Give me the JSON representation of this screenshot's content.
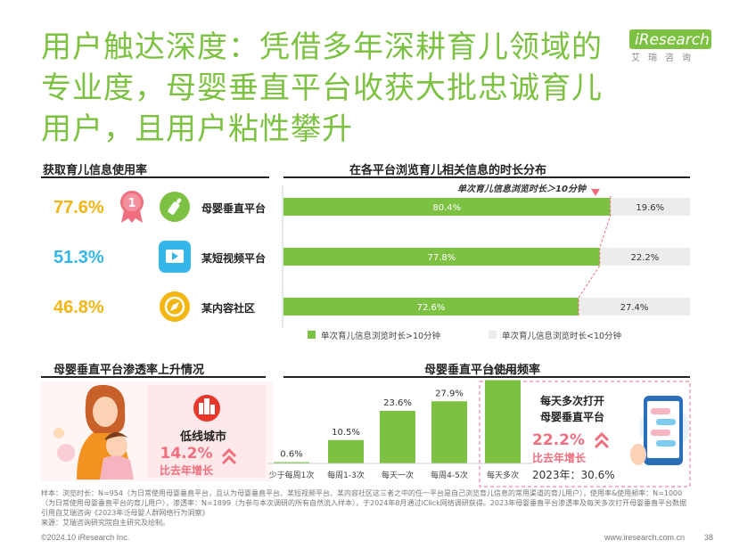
{
  "title": "用户触达深度：凭借多年深耕育儿领域的专业度，母婴垂直平台收获大批忠诚育儿用户，且用户粘性攀升",
  "logo": {
    "brand": "iResearch",
    "cn": "艾瑞咨询"
  },
  "left_section": {
    "title": "获取育儿信息使用率",
    "rows": [
      {
        "pct": "77.6%",
        "label": "母婴垂直平台",
        "rank": "1",
        "icon": "baby-bottle-icon"
      },
      {
        "pct": "51.3%",
        "label": "某短视频平台",
        "icon": "video-play-icon"
      },
      {
        "pct": "46.8%",
        "label": "某内容社区",
        "icon": "compass-icon"
      }
    ]
  },
  "colors": {
    "green": "#7cc142",
    "light_gray": "#ececec",
    "orange": "#f29321",
    "cyan": "#35b6e8",
    "yellow": "#f3b512",
    "pink": "#f06f7f",
    "red": "#e9372b"
  },
  "chart_data": [
    {
      "type": "bar",
      "orientation": "horizontal",
      "stacked": true,
      "title": "在各平台浏览育儿相关信息的时长分布",
      "categories": [
        "母婴垂直平台",
        "某短视频平台",
        "某内容社区"
      ],
      "series": [
        {
          "name": "单次育儿信息浏览时长>10分钟",
          "values": [
            80.4,
            77.8,
            72.6
          ]
        },
        {
          "name": "单次育儿信息浏览时长<10分钟",
          "values": [
            19.6,
            22.2,
            27.4
          ]
        }
      ],
      "value_labels": [
        [
          "80.4%",
          "77.8%",
          "72.6%"
        ],
        [
          "19.6%",
          "22.2%",
          "27.4%"
        ]
      ],
      "annotation": "单次育儿信息浏览时长＞10分钟",
      "xlim": [
        0,
        100
      ],
      "legend_position": "bottom"
    },
    {
      "type": "bar",
      "title": "母婴垂直平台使用频率",
      "categories": [
        "少于每周1次",
        "每周1-3次",
        "每天一次",
        "每周4-5次",
        "每天多次"
      ],
      "values": [
        0.6,
        10.5,
        23.6,
        27.9,
        37.4
      ],
      "value_labels": [
        "0.6%",
        "10.5%",
        "23.6%",
        "27.9%",
        "37.4%"
      ],
      "ylim": [
        0,
        40
      ],
      "highlight": {
        "category": "每天多次",
        "line1": "每天多次打开",
        "line2": "母婴垂直平台",
        "pct": "22.2%",
        "growth": "比去年增长",
        "year_note": "2023年：30.6%"
      }
    }
  ],
  "penetration": {
    "title": "母婴垂直平台渗透率上升情况",
    "city": "低线城市",
    "pct": "14.2%",
    "growth": "比去年增长"
  },
  "notes": "样本：浏览时长：N=954（为日常使用母婴垂直平台，且认为母婴垂直平台、某短视频平台、某内容社区这三者之中的任一平台是自己浏览育儿信息的常用渠道的育儿用户），使用率&使用频率：N=1000（为日常使用母婴垂直平台的育儿用户），渗透率：N=1899（为参与本次调研的所有自然流入样本），于2024年8月通过iClick网络调研获得。2023年母婴垂直平台渗透率及每天多次打开母婴垂直平台数据引用自艾瑞咨询《2023年泛母婴人群网络行为洞察》",
  "source": "来源：艾瑞咨询研究院自主研究及绘制。",
  "footer": {
    "copyright": "©2024.10 iResearch Inc.",
    "site": "www.iresearch.com.cn",
    "page": "38"
  }
}
